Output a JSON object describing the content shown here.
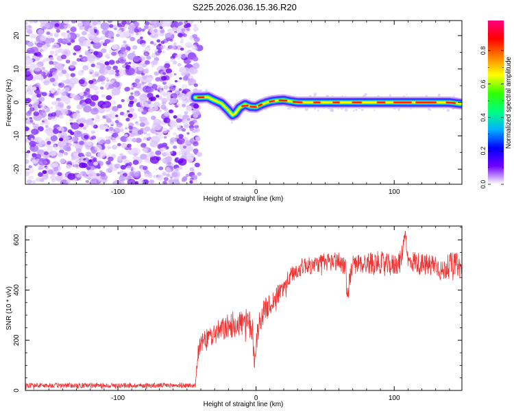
{
  "title": "S225.2026.036.15.36.R20",
  "chart_data": [
    {
      "type": "heatmap",
      "name": "spectrogram",
      "xlabel": "Height of straight line (km)",
      "ylabel": "Frequency (Hz)",
      "xlim": [
        -167,
        149
      ],
      "ylim": [
        -24.5,
        24.5
      ],
      "xticks": [
        -100,
        0,
        100
      ],
      "yticks": [
        -20,
        -10,
        0,
        10,
        20
      ],
      "noise_region_x": [
        -167,
        -44
      ],
      "ridge": {
        "description": "strong narrow-band signal centered near 0 Hz",
        "x": [
          -44,
          -40,
          -35,
          -30,
          -25,
          -20,
          -17,
          -15,
          -12,
          -8,
          -4,
          0,
          4,
          8,
          12,
          16,
          20,
          25,
          30,
          40,
          60,
          80,
          100,
          120,
          140,
          148
        ],
        "freq": [
          1.5,
          1.5,
          1.6,
          0.6,
          -0.3,
          -2.4,
          -3.8,
          -3.3,
          -1.6,
          -0.6,
          -1.3,
          -1.4,
          -0.6,
          0.0,
          0.4,
          0.6,
          0.7,
          0.3,
          0.0,
          0.0,
          0.0,
          0.0,
          0.0,
          0.0,
          0.0,
          -0.4
        ],
        "amplitude": 1.0
      }
    },
    {
      "type": "colorbar",
      "name": "amplitude-colorbar",
      "label": "Normalized spectral amplitude",
      "range": [
        0,
        0.98
      ],
      "ticks": [
        "0.0",
        "0.2",
        "0.4",
        "0.6",
        "0.8"
      ],
      "tick_values": [
        0.0,
        0.2,
        0.4,
        0.6,
        0.8
      ],
      "colors": [
        "#ffffff",
        "#7000ff",
        "#0000ff",
        "#00b0ff",
        "#00ff80",
        "#30ff00",
        "#ffff00",
        "#ff8000",
        "#ff0000",
        "#ff0080"
      ]
    },
    {
      "type": "line",
      "name": "snr-plot",
      "xlabel": "Height of straight line (km)",
      "ylabel": "SNR (10 * v/v)",
      "xlim": [
        -167,
        149
      ],
      "ylim": [
        0,
        655
      ],
      "xticks": [
        -100,
        0,
        100
      ],
      "yticks": [
        0,
        200,
        400,
        600
      ],
      "series": [
        {
          "name": "SNR",
          "color": "#ee3333",
          "x": [
            -167,
            -140,
            -110,
            -80,
            -60,
            -46,
            -44,
            -42,
            -40,
            -35,
            -30,
            -25,
            -20,
            -15,
            -10,
            -6,
            -3,
            -1,
            0,
            3,
            6,
            10,
            15,
            20,
            25,
            30,
            35,
            40,
            45,
            50,
            55,
            60,
            65,
            66,
            68,
            70,
            75,
            80,
            85,
            90,
            95,
            100,
            105,
            108,
            110,
            115,
            120,
            125,
            130,
            135,
            140,
            145,
            149
          ],
          "mean": [
            20,
            20,
            20,
            20,
            20,
            20,
            20,
            150,
            185,
            210,
            225,
            240,
            255,
            265,
            270,
            265,
            250,
            110,
            200,
            280,
            320,
            340,
            375,
            415,
            455,
            480,
            500,
            495,
            505,
            510,
            515,
            515,
            495,
            360,
            450,
            500,
            505,
            505,
            510,
            510,
            500,
            500,
            515,
            640,
            510,
            515,
            500,
            500,
            505,
            470,
            505,
            505,
            480
          ],
          "noise_amplitude": [
            10,
            10,
            10,
            10,
            10,
            10,
            10,
            30,
            35,
            40,
            45,
            50,
            50,
            55,
            55,
            60,
            60,
            40,
            50,
            50,
            45,
            45,
            40,
            40,
            35,
            35,
            35,
            35,
            35,
            40,
            40,
            40,
            40,
            40,
            40,
            40,
            40,
            45,
            45,
            45,
            45,
            45,
            45,
            20,
            40,
            45,
            45,
            45,
            45,
            45,
            45,
            45,
            45
          ]
        }
      ]
    }
  ]
}
